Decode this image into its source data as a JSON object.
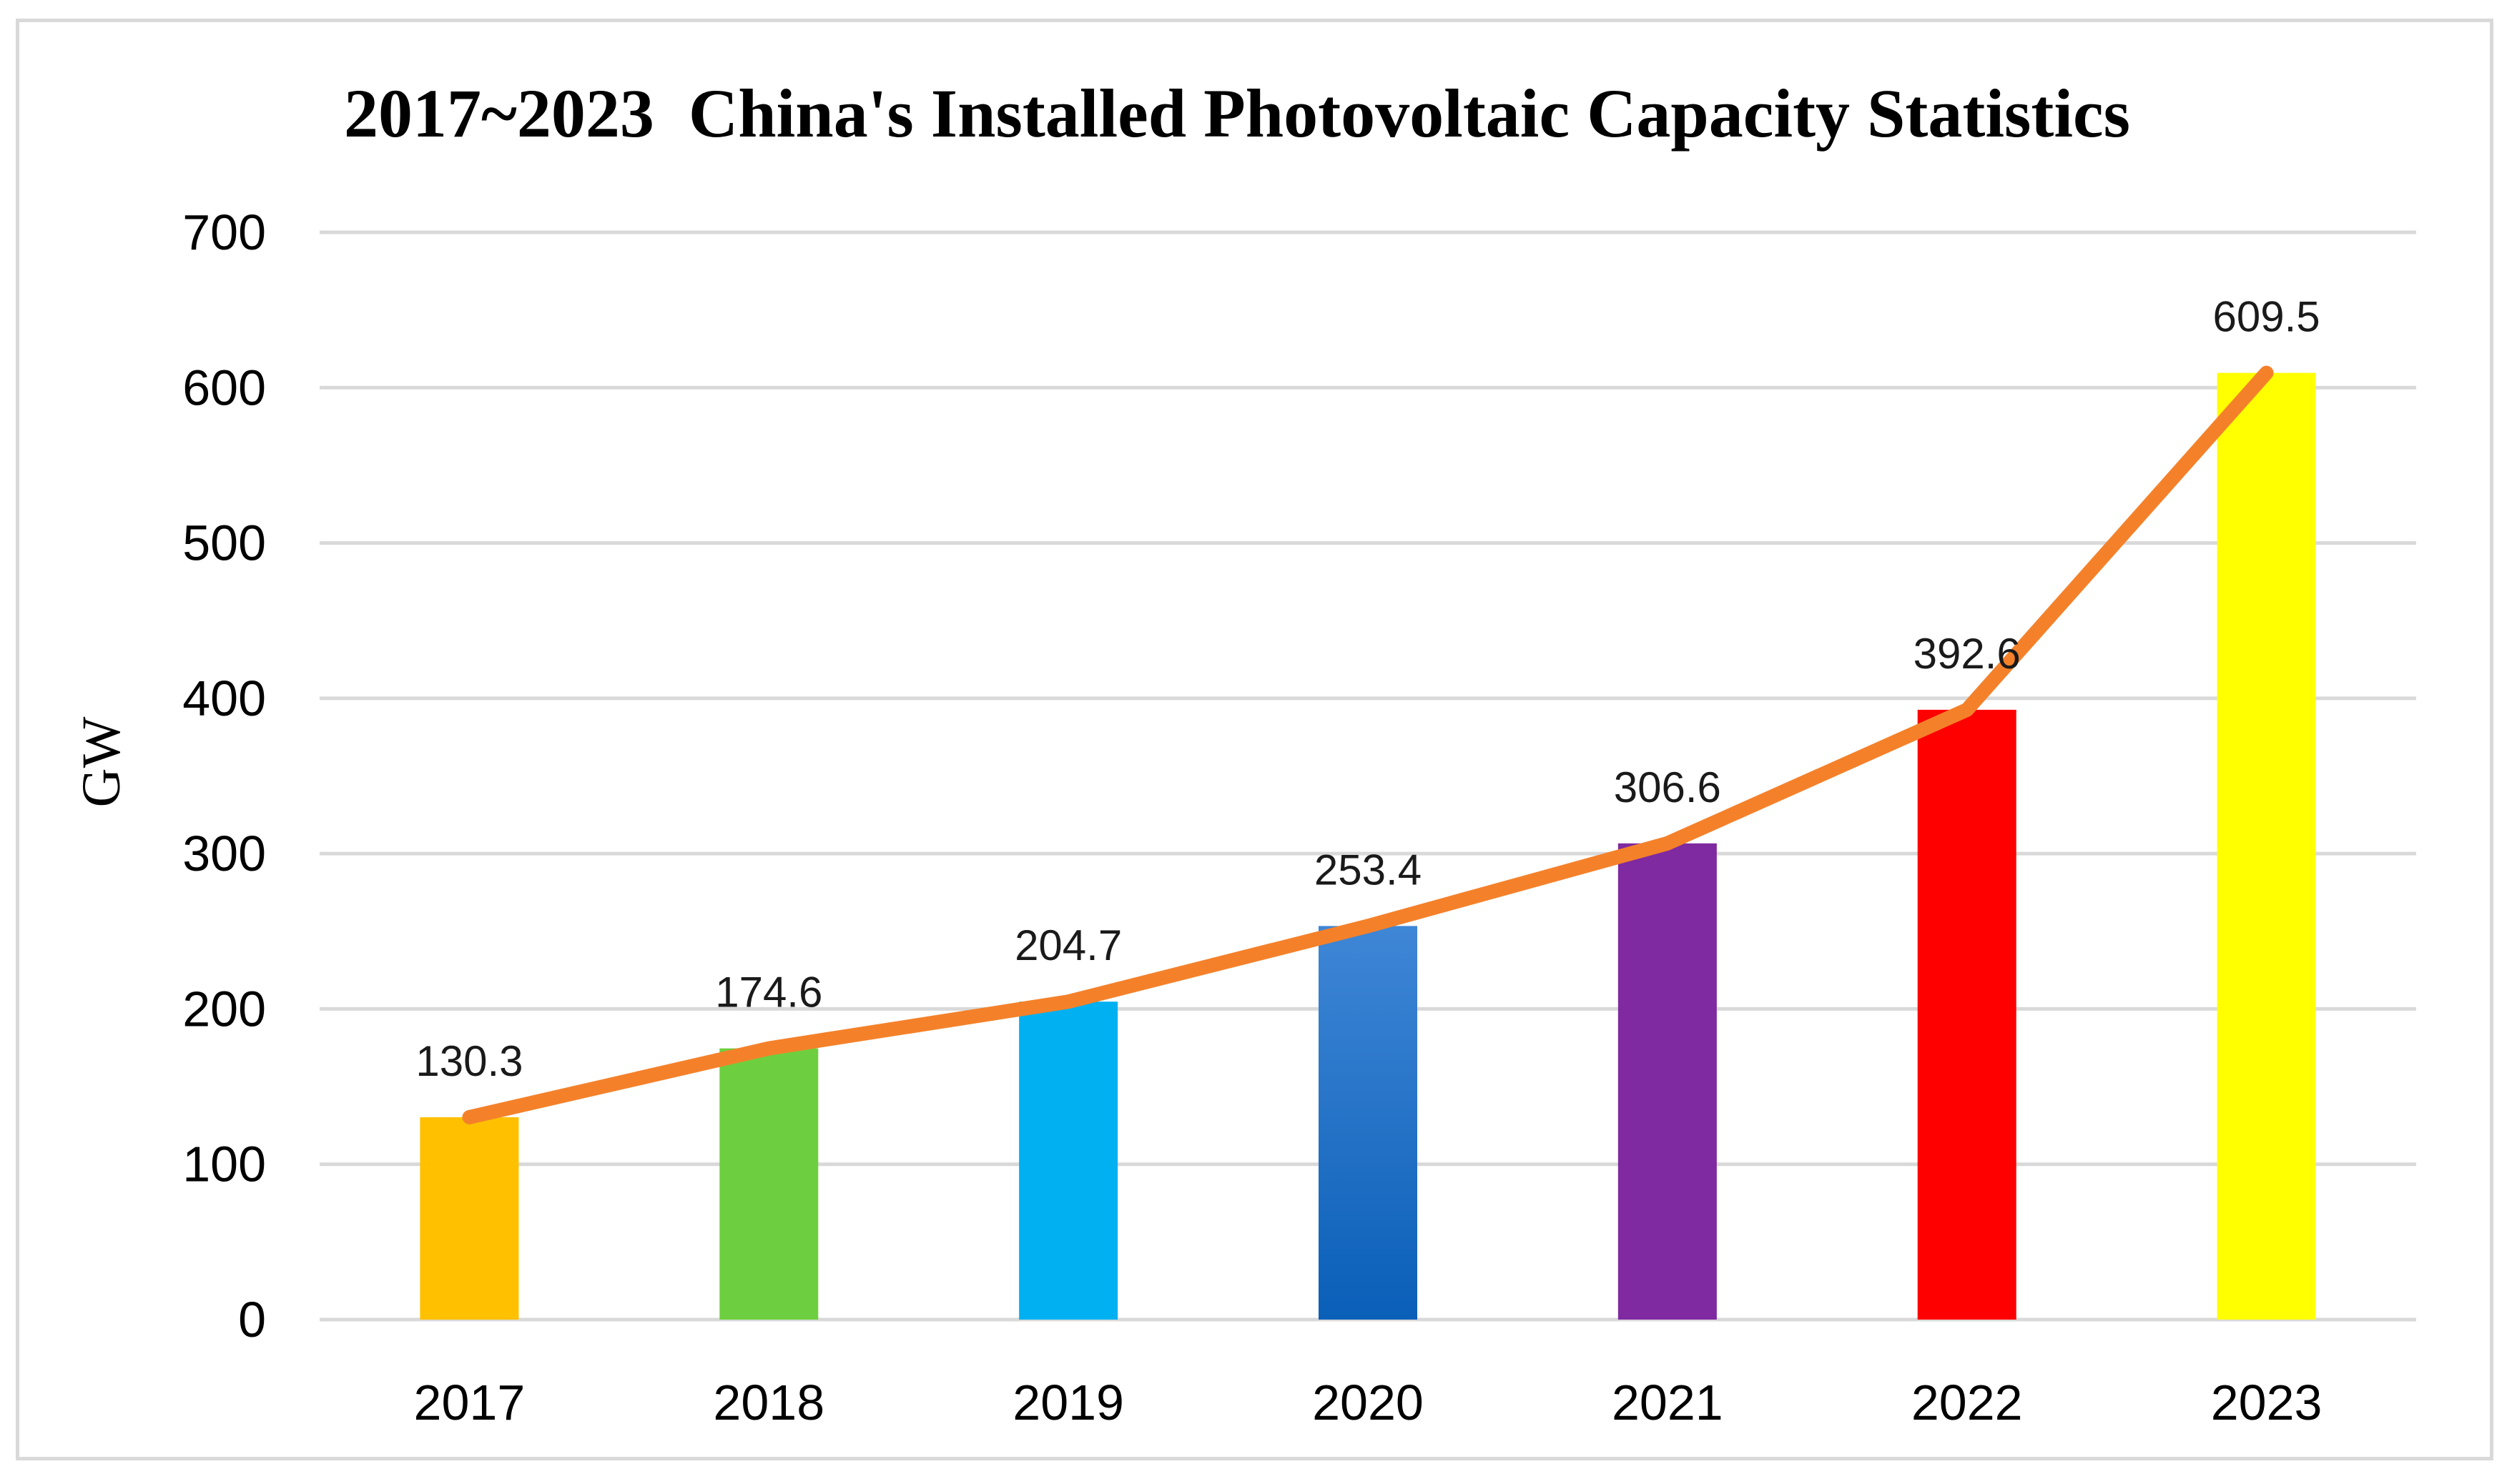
{
  "chart_data": {
    "type": "bar",
    "title": "2017~2023  China's Installed Photovoltaic Capacity Statistics",
    "xlabel": "",
    "ylabel": "GW",
    "categories": [
      "2017",
      "2018",
      "2019",
      "2020",
      "2021",
      "2022",
      "2023"
    ],
    "values": [
      130.3,
      174.6,
      204.7,
      253.4,
      306.6,
      392.6,
      609.5
    ],
    "data_labels": [
      "130.3",
      "174.6",
      "204.7",
      "253.4",
      "306.6",
      "392.6",
      "609.5"
    ],
    "ylim": [
      0,
      700
    ],
    "yticks": [
      0,
      100,
      200,
      300,
      400,
      500,
      600,
      700
    ],
    "grid": true,
    "bar_colors": [
      "#ffc000",
      "#6dcf3f",
      "#00b0f0",
      "#1f6fc4",
      "#7f2aa0",
      "#ff0000",
      "#ffff00"
    ],
    "line_overlay": {
      "type": "line",
      "values": [
        130.3,
        174.6,
        204.7,
        253.4,
        306.6,
        392.6,
        609.5
      ],
      "color": "#f4812a"
    },
    "gridline_color": "#d9d9d9",
    "legend": "none"
  }
}
